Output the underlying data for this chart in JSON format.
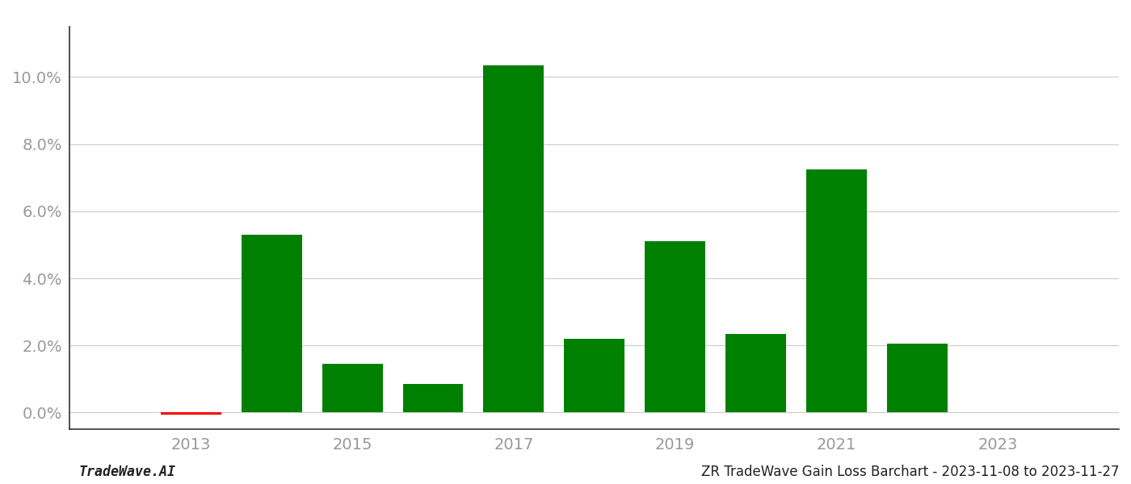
{
  "years": [
    2013,
    2014,
    2015,
    2016,
    2017,
    2018,
    2019,
    2020,
    2021,
    2022
  ],
  "values": [
    -0.0005,
    0.053,
    0.0145,
    0.0085,
    0.1035,
    0.022,
    0.051,
    0.0235,
    0.0725,
    0.0205
  ],
  "bar_colors": [
    "#ff0000",
    "#008000",
    "#008000",
    "#008000",
    "#008000",
    "#008000",
    "#008000",
    "#008000",
    "#008000",
    "#008000"
  ],
  "background_color": "#ffffff",
  "grid_color": "#cccccc",
  "ylim_min": -0.005,
  "ylim_max": 0.115,
  "xlim_min": 2011.5,
  "xlim_max": 2024.5,
  "footer_left": "TradeWave.AI",
  "footer_right": "ZR TradeWave Gain Loss Barchart - 2023-11-08 to 2023-11-27",
  "bar_width": 0.75,
  "tick_label_color": "#999999",
  "footer_font_size": 12,
  "tick_fontsize": 14,
  "x_ticks": [
    2013,
    2015,
    2017,
    2019,
    2021,
    2023
  ],
  "y_tick_step": 0.02
}
